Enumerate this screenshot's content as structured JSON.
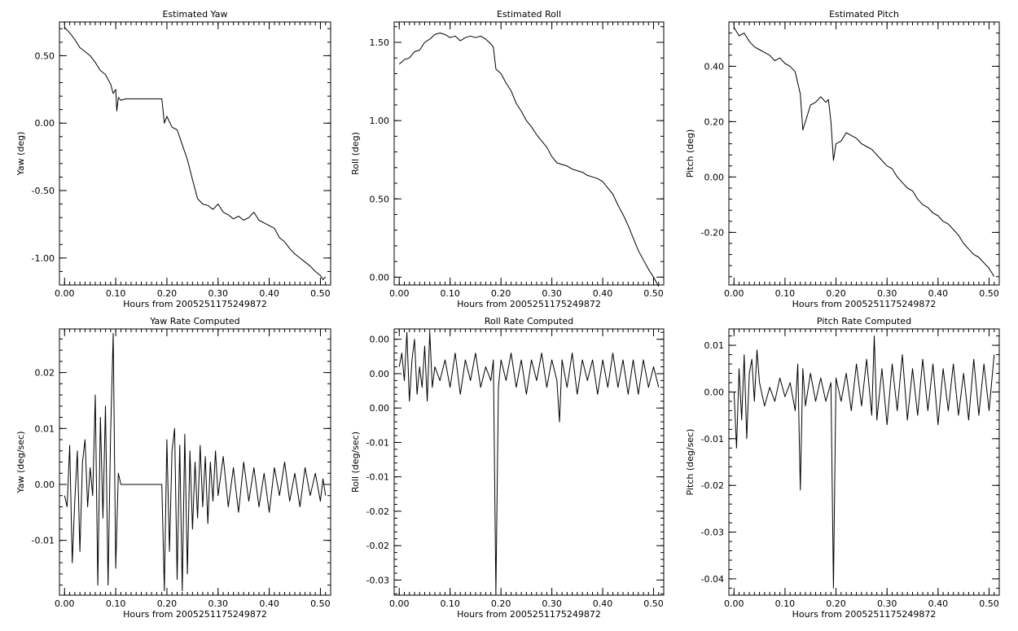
{
  "chart_data": [
    {
      "type": "line",
      "title": "Estimated Yaw",
      "xlabel": "Hours from 2005251175249872",
      "ylabel": "Yaw (deg)",
      "xlim": [
        -0.01,
        0.52
      ],
      "ylim": [
        -1.2,
        0.75
      ],
      "x_ticks": [
        0.0,
        0.1,
        0.2,
        0.3,
        0.4,
        0.5
      ],
      "x_tick_labels": [
        "0.00",
        "0.10",
        "0.20",
        "0.30",
        "0.40",
        "0.50"
      ],
      "y_ticks": [
        0.5,
        0.0,
        -0.5,
        -1.0
      ],
      "y_tick_labels": [
        "0.50",
        "0.00",
        "-0.50",
        "-1.00"
      ],
      "series": [
        {
          "x": [
            0.0,
            0.01,
            0.02,
            0.03,
            0.04,
            0.05,
            0.06,
            0.07,
            0.08,
            0.09,
            0.095,
            0.1,
            0.102,
            0.105,
            0.11,
            0.12,
            0.15,
            0.19,
            0.195,
            0.2,
            0.21,
            0.22,
            0.23,
            0.24,
            0.25,
            0.26,
            0.27,
            0.28,
            0.29,
            0.3,
            0.31,
            0.32,
            0.33,
            0.34,
            0.35,
            0.36,
            0.37,
            0.38,
            0.39,
            0.4,
            0.41,
            0.42,
            0.43,
            0.44,
            0.45,
            0.46,
            0.47,
            0.48,
            0.49,
            0.5,
            0.505,
            0.51
          ],
          "y": [
            0.71,
            0.67,
            0.62,
            0.56,
            0.53,
            0.5,
            0.45,
            0.39,
            0.36,
            0.29,
            0.22,
            0.25,
            0.09,
            0.19,
            0.17,
            0.18,
            0.18,
            0.18,
            0.0,
            0.05,
            -0.03,
            -0.05,
            -0.16,
            -0.27,
            -0.42,
            -0.56,
            -0.6,
            -0.61,
            -0.64,
            -0.6,
            -0.66,
            -0.68,
            -0.71,
            -0.69,
            -0.72,
            -0.7,
            -0.66,
            -0.72,
            -0.74,
            -0.76,
            -0.78,
            -0.85,
            -0.88,
            -0.93,
            -0.97,
            -1.0,
            -1.03,
            -1.06,
            -1.1,
            -1.13,
            -1.16,
            -1.14
          ]
        }
      ]
    },
    {
      "type": "line",
      "title": "Estimated Roll",
      "xlabel": "Hours from 2005251175249872",
      "ylabel": "Roll (deg)",
      "xlim": [
        -0.01,
        0.52
      ],
      "ylim": [
        -0.05,
        1.63
      ],
      "x_ticks": [
        0.0,
        0.1,
        0.2,
        0.3,
        0.4,
        0.5
      ],
      "x_tick_labels": [
        "0.00",
        "0.10",
        "0.20",
        "0.30",
        "0.40",
        "0.50"
      ],
      "y_ticks": [
        0.0,
        0.5,
        1.0,
        1.5
      ],
      "y_tick_labels": [
        "0.00",
        "0.50",
        "1.00",
        "1.50"
      ],
      "series": [
        {
          "x": [
            0.0,
            0.01,
            0.02,
            0.03,
            0.04,
            0.05,
            0.06,
            0.07,
            0.08,
            0.09,
            0.1,
            0.11,
            0.12,
            0.13,
            0.14,
            0.15,
            0.16,
            0.17,
            0.18,
            0.185,
            0.19,
            0.2,
            0.21,
            0.22,
            0.23,
            0.24,
            0.25,
            0.26,
            0.27,
            0.28,
            0.29,
            0.3,
            0.31,
            0.32,
            0.33,
            0.34,
            0.35,
            0.36,
            0.37,
            0.38,
            0.39,
            0.4,
            0.41,
            0.42,
            0.43,
            0.44,
            0.45,
            0.46,
            0.47,
            0.48,
            0.49,
            0.5,
            0.51
          ],
          "y": [
            1.36,
            1.39,
            1.4,
            1.44,
            1.45,
            1.5,
            1.52,
            1.55,
            1.56,
            1.55,
            1.53,
            1.54,
            1.51,
            1.53,
            1.54,
            1.53,
            1.54,
            1.52,
            1.49,
            1.47,
            1.33,
            1.3,
            1.24,
            1.19,
            1.11,
            1.06,
            1.0,
            0.96,
            0.91,
            0.87,
            0.83,
            0.77,
            0.73,
            0.72,
            0.71,
            0.69,
            0.68,
            0.67,
            0.65,
            0.64,
            0.63,
            0.61,
            0.57,
            0.53,
            0.46,
            0.4,
            0.33,
            0.25,
            0.17,
            0.11,
            0.05,
            0.0,
            -0.06
          ]
        }
      ]
    },
    {
      "type": "line",
      "title": "Estimated Pitch",
      "xlabel": "Hours from 2005251175249872",
      "ylabel": "Pitch (deg)",
      "xlim": [
        -0.01,
        0.52
      ],
      "ylim": [
        -0.39,
        0.56
      ],
      "x_ticks": [
        0.0,
        0.1,
        0.2,
        0.3,
        0.4,
        0.5
      ],
      "x_tick_labels": [
        "0.00",
        "0.10",
        "0.20",
        "0.30",
        "0.40",
        "0.50"
      ],
      "y_ticks": [
        0.4,
        0.2,
        0.0,
        -0.2
      ],
      "y_tick_labels": [
        "0.40",
        "0.20",
        "0.00",
        "-0.20"
      ],
      "series": [
        {
          "x": [
            0.0,
            0.01,
            0.02,
            0.03,
            0.04,
            0.05,
            0.06,
            0.07,
            0.08,
            0.09,
            0.1,
            0.11,
            0.12,
            0.13,
            0.135,
            0.14,
            0.15,
            0.16,
            0.17,
            0.18,
            0.185,
            0.19,
            0.195,
            0.2,
            0.21,
            0.22,
            0.23,
            0.24,
            0.25,
            0.26,
            0.27,
            0.28,
            0.29,
            0.3,
            0.31,
            0.32,
            0.33,
            0.34,
            0.35,
            0.36,
            0.37,
            0.38,
            0.39,
            0.4,
            0.41,
            0.42,
            0.43,
            0.44,
            0.45,
            0.46,
            0.47,
            0.48,
            0.49,
            0.5,
            0.51
          ],
          "y": [
            0.54,
            0.51,
            0.52,
            0.49,
            0.47,
            0.46,
            0.45,
            0.44,
            0.42,
            0.43,
            0.41,
            0.4,
            0.38,
            0.3,
            0.17,
            0.2,
            0.26,
            0.27,
            0.29,
            0.27,
            0.28,
            0.2,
            0.06,
            0.12,
            0.13,
            0.16,
            0.15,
            0.14,
            0.12,
            0.11,
            0.1,
            0.08,
            0.06,
            0.04,
            0.03,
            0.0,
            -0.02,
            -0.04,
            -0.05,
            -0.08,
            -0.1,
            -0.11,
            -0.13,
            -0.14,
            -0.16,
            -0.17,
            -0.19,
            -0.21,
            -0.24,
            -0.26,
            -0.28,
            -0.29,
            -0.31,
            -0.33,
            -0.36
          ]
        }
      ]
    },
    {
      "type": "line",
      "title": "Yaw Rate Computed",
      "xlabel": "Hours from 2005251175249872",
      "ylabel": "Yaw (deg/sec)",
      "xlim": [
        -0.01,
        0.52
      ],
      "ylim": [
        -0.0198,
        0.0278
      ],
      "x_ticks": [
        0.0,
        0.1,
        0.2,
        0.3,
        0.4,
        0.5
      ],
      "x_tick_labels": [
        "0.00",
        "0.10",
        "0.20",
        "0.30",
        "0.40",
        "0.50"
      ],
      "y_ticks": [
        0.02,
        0.01,
        0.0,
        -0.01
      ],
      "y_tick_labels": [
        "0.02",
        "0.01",
        "0.00",
        "-0.01"
      ],
      "series": [
        {
          "x": [
            0.0,
            0.005,
            0.01,
            0.015,
            0.02,
            0.025,
            0.03,
            0.035,
            0.04,
            0.045,
            0.05,
            0.055,
            0.06,
            0.065,
            0.07,
            0.075,
            0.08,
            0.085,
            0.09,
            0.095,
            0.1,
            0.105,
            0.11,
            0.12,
            0.19,
            0.195,
            0.2,
            0.205,
            0.21,
            0.215,
            0.22,
            0.225,
            0.23,
            0.235,
            0.24,
            0.245,
            0.25,
            0.255,
            0.26,
            0.265,
            0.27,
            0.275,
            0.28,
            0.285,
            0.29,
            0.295,
            0.3,
            0.31,
            0.32,
            0.33,
            0.34,
            0.35,
            0.36,
            0.37,
            0.38,
            0.39,
            0.4,
            0.41,
            0.42,
            0.43,
            0.44,
            0.45,
            0.46,
            0.47,
            0.48,
            0.49,
            0.5,
            0.505,
            0.51
          ],
          "y": [
            -0.002,
            -0.004,
            0.007,
            -0.014,
            -0.003,
            0.006,
            -0.012,
            0.004,
            0.008,
            -0.004,
            0.003,
            -0.002,
            0.016,
            -0.018,
            0.012,
            -0.006,
            0.014,
            -0.018,
            0.009,
            0.027,
            -0.015,
            0.002,
            0.0,
            0.0,
            0.0,
            -0.019,
            0.008,
            -0.012,
            0.006,
            0.01,
            -0.017,
            0.007,
            -0.019,
            0.009,
            -0.016,
            0.006,
            -0.008,
            0.004,
            -0.006,
            0.007,
            -0.004,
            0.005,
            -0.007,
            0.004,
            -0.003,
            0.006,
            -0.002,
            0.005,
            -0.004,
            0.003,
            -0.005,
            0.004,
            -0.003,
            0.003,
            -0.004,
            0.002,
            -0.005,
            0.003,
            -0.002,
            0.004,
            -0.003,
            0.002,
            -0.004,
            0.003,
            -0.002,
            0.002,
            -0.003,
            0.001,
            -0.002
          ]
        }
      ]
    },
    {
      "type": "line",
      "title": "Roll Rate Computed",
      "xlabel": "Hours from 2005251175249872",
      "ylabel": "Roll (deg/sec)",
      "xlim": [
        -0.01,
        0.52
      ],
      "ylim": [
        -0.0322,
        0.0065
      ],
      "x_ticks": [
        0.0,
        0.1,
        0.2,
        0.3,
        0.4,
        0.5
      ],
      "x_tick_labels": [
        "0.00",
        "0.10",
        "0.20",
        "0.30",
        "0.40",
        "0.50"
      ],
      "y_ticks": [
        0.005,
        0.0,
        -0.005,
        -0.01,
        -0.015,
        -0.02,
        -0.025,
        -0.03
      ],
      "y_tick_labels": [
        "0.00",
        "0.00",
        "0.00",
        "-0.01",
        "-0.01",
        "-0.02",
        "-0.02",
        "-0.03"
      ],
      "series": [
        {
          "x": [
            0.0,
            0.005,
            0.01,
            0.015,
            0.02,
            0.025,
            0.03,
            0.035,
            0.04,
            0.045,
            0.05,
            0.055,
            0.06,
            0.065,
            0.07,
            0.08,
            0.09,
            0.1,
            0.11,
            0.12,
            0.13,
            0.14,
            0.15,
            0.16,
            0.17,
            0.18,
            0.185,
            0.19,
            0.195,
            0.2,
            0.21,
            0.22,
            0.23,
            0.24,
            0.25,
            0.26,
            0.27,
            0.28,
            0.29,
            0.3,
            0.31,
            0.315,
            0.32,
            0.33,
            0.34,
            0.35,
            0.36,
            0.37,
            0.38,
            0.39,
            0.4,
            0.41,
            0.42,
            0.43,
            0.44,
            0.45,
            0.46,
            0.47,
            0.48,
            0.49,
            0.5,
            0.51
          ],
          "y": [
            0.001,
            0.003,
            -0.001,
            0.006,
            -0.004,
            0.002,
            0.005,
            -0.003,
            0.001,
            -0.002,
            0.004,
            -0.004,
            0.006,
            -0.002,
            0.001,
            -0.001,
            0.002,
            -0.002,
            0.003,
            -0.003,
            0.002,
            -0.001,
            0.003,
            -0.002,
            0.001,
            -0.001,
            0.002,
            -0.032,
            -0.002,
            0.002,
            -0.001,
            0.003,
            -0.002,
            0.002,
            -0.003,
            0.002,
            -0.001,
            0.003,
            -0.002,
            0.002,
            -0.001,
            -0.007,
            0.002,
            -0.002,
            0.003,
            -0.003,
            0.002,
            -0.001,
            0.002,
            -0.003,
            0.002,
            -0.002,
            0.003,
            -0.002,
            0.002,
            -0.003,
            0.002,
            -0.003,
            0.002,
            -0.002,
            0.001,
            -0.002
          ]
        }
      ]
    },
    {
      "type": "line",
      "title": "Pitch Rate Computed",
      "xlabel": "Hours from 2005251175249872",
      "ylabel": "Pitch (deg/sec)",
      "xlim": [
        -0.01,
        0.52
      ],
      "ylim": [
        -0.0435,
        0.0135
      ],
      "x_ticks": [
        0.0,
        0.1,
        0.2,
        0.3,
        0.4,
        0.5
      ],
      "x_tick_labels": [
        "0.00",
        "0.10",
        "0.20",
        "0.30",
        "0.40",
        "0.50"
      ],
      "y_ticks": [
        0.01,
        0.0,
        -0.01,
        -0.02,
        -0.03,
        -0.04
      ],
      "y_tick_labels": [
        "0.01",
        "0.00",
        "-0.01",
        "-0.02",
        "-0.03",
        "-0.04"
      ],
      "series": [
        {
          "x": [
            0.0,
            0.005,
            0.01,
            0.015,
            0.02,
            0.025,
            0.03,
            0.035,
            0.04,
            0.045,
            0.05,
            0.06,
            0.07,
            0.08,
            0.09,
            0.1,
            0.11,
            0.12,
            0.125,
            0.13,
            0.135,
            0.14,
            0.15,
            0.16,
            0.17,
            0.18,
            0.19,
            0.195,
            0.2,
            0.21,
            0.22,
            0.23,
            0.24,
            0.25,
            0.26,
            0.27,
            0.275,
            0.28,
            0.29,
            0.3,
            0.31,
            0.32,
            0.33,
            0.34,
            0.35,
            0.36,
            0.37,
            0.38,
            0.39,
            0.4,
            0.41,
            0.42,
            0.43,
            0.44,
            0.45,
            0.46,
            0.47,
            0.48,
            0.49,
            0.5,
            0.51
          ],
          "y": [
            0.0,
            -0.012,
            0.005,
            -0.006,
            0.008,
            -0.01,
            0.004,
            0.007,
            -0.002,
            0.009,
            0.002,
            -0.003,
            0.001,
            -0.002,
            0.003,
            -0.001,
            0.002,
            -0.004,
            0.006,
            -0.021,
            0.005,
            -0.003,
            0.004,
            -0.002,
            0.003,
            -0.002,
            0.002,
            -0.042,
            0.003,
            -0.002,
            0.004,
            -0.004,
            0.006,
            -0.003,
            0.007,
            -0.005,
            0.012,
            -0.006,
            0.005,
            -0.007,
            0.006,
            -0.004,
            0.008,
            -0.006,
            0.005,
            -0.005,
            0.007,
            -0.004,
            0.006,
            -0.007,
            0.005,
            -0.004,
            0.006,
            -0.005,
            0.004,
            -0.006,
            0.007,
            -0.005,
            0.006,
            -0.004,
            0.008
          ]
        }
      ]
    }
  ]
}
